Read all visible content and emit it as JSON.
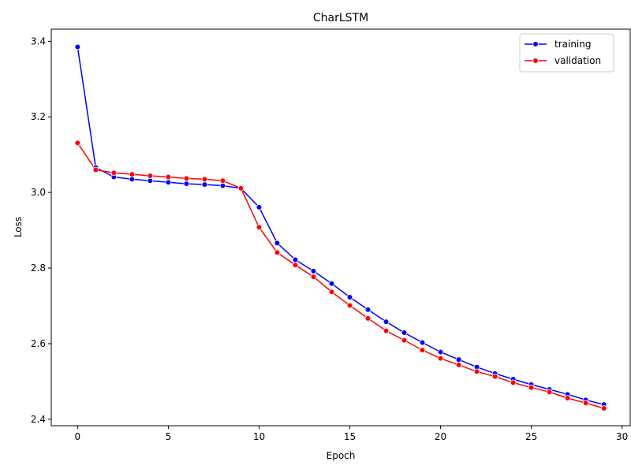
{
  "chart_data": {
    "type": "line",
    "title": "CharLSTM",
    "xlabel": "Epoch",
    "ylabel": "Loss",
    "xlim": [
      -1.45,
      30.45
    ],
    "ylim": [
      2.383,
      3.432
    ],
    "xticks": [
      0,
      5,
      10,
      15,
      20,
      25,
      30
    ],
    "yticks": [
      2.4,
      2.6,
      2.8,
      3.0,
      3.2,
      3.4
    ],
    "ytick_labels": [
      "2.4",
      "2.6",
      "2.8",
      "3.0",
      "3.2",
      "3.4"
    ],
    "legend_position": "upper right",
    "grid": false,
    "x": [
      0,
      1,
      2,
      3,
      4,
      5,
      6,
      7,
      8,
      9,
      10,
      11,
      12,
      13,
      14,
      15,
      16,
      17,
      18,
      19,
      20,
      21,
      22,
      23,
      24,
      25,
      26,
      27,
      28,
      29
    ],
    "series": [
      {
        "name": "training",
        "color": "#0000ff",
        "values": [
          3.385,
          3.066,
          3.041,
          3.035,
          3.031,
          3.027,
          3.023,
          3.021,
          3.018,
          3.011,
          2.961,
          2.866,
          2.822,
          2.792,
          2.759,
          2.723,
          2.69,
          2.658,
          2.629,
          2.603,
          2.578,
          2.558,
          2.538,
          2.521,
          2.506,
          2.492,
          2.479,
          2.466,
          2.451,
          2.439
        ]
      },
      {
        "name": "validation",
        "color": "#ff0000",
        "values": [
          3.131,
          3.06,
          3.052,
          3.048,
          3.044,
          3.041,
          3.037,
          3.035,
          3.031,
          3.011,
          2.908,
          2.841,
          2.808,
          2.777,
          2.737,
          2.701,
          2.667,
          2.634,
          2.609,
          2.583,
          2.561,
          2.544,
          2.526,
          2.513,
          2.497,
          2.484,
          2.472,
          2.456,
          2.443,
          2.429
        ]
      }
    ]
  }
}
